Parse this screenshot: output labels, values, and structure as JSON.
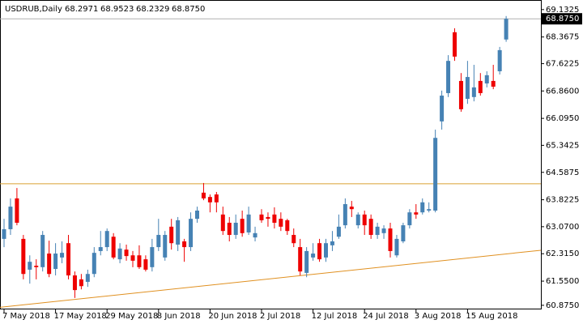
{
  "chart_data": {
    "type": "candlestick",
    "title": "USDRUB,Daily",
    "header_values": [
      "68.2971",
      "68.9523",
      "68.2329",
      "68.8750"
    ],
    "price_label": {
      "value": 68.875,
      "label": "68.8750"
    },
    "up_color": "#4682b4",
    "down_color": "#ee0000",
    "categories": [
      "7 May 2018",
      null,
      null,
      null,
      null,
      null,
      null,
      null,
      "17 May 2018",
      null,
      null,
      null,
      null,
      null,
      null,
      null,
      "29 May 2018",
      null,
      null,
      null,
      null,
      null,
      null,
      null,
      "8 Jun 2018",
      null,
      null,
      null,
      null,
      null,
      null,
      null,
      "20 Jun 2018",
      null,
      null,
      null,
      null,
      null,
      null,
      null,
      "2 Jul 2018",
      null,
      null,
      null,
      null,
      null,
      null,
      null,
      "12 Jul 2018",
      null,
      null,
      null,
      null,
      null,
      null,
      null,
      "24 Jul 2018",
      null,
      null,
      null,
      null,
      null,
      null,
      null,
      "3 Aug 2018",
      null,
      null,
      null,
      null,
      null,
      null,
      null,
      "15 Aug 2018",
      null,
      null,
      null,
      null,
      null,
      null
    ],
    "open": [
      62.73,
      63.0,
      63.86,
      62.73,
      61.87,
      61.98,
      61.94,
      62.32,
      61.89,
      62.21,
      62.61,
      61.71,
      61.6,
      61.53,
      61.75,
      62.39,
      62.5,
      62.79,
      62.16,
      62.43,
      62.27,
      62.27,
      62.16,
      61.94,
      62.5,
      62.21,
      63.07,
      62.57,
      62.66,
      62.5,
      63.29,
      64.02,
      63.9,
      63.97,
      63.41,
      63.18,
      62.84,
      63.29,
      62.91,
      62.77,
      63.41,
      63.34,
      63.41,
      63.29,
      63.25,
      62.84,
      62.5,
      61.78,
      62.21,
      62.61,
      62.21,
      62.55,
      62.79,
      63.11,
      63.63,
      63.11,
      63.41,
      63.29,
      62.84,
      62.89,
      63.02,
      62.27,
      62.66,
      63.11,
      63.47,
      63.47,
      63.52,
      63.52,
      66.01,
      66.8,
      68.5,
      67.14,
      66.64,
      66.69,
      67.14,
      67.07,
      67.14,
      67.41,
      68.2971
    ],
    "high": [
      63.29,
      63.86,
      64.15,
      62.84,
      62.27,
      62.16,
      62.95,
      62.68,
      62.61,
      62.66,
      62.84,
      61.82,
      61.75,
      61.87,
      62.5,
      62.95,
      63.02,
      62.89,
      62.61,
      62.57,
      62.39,
      62.55,
      62.27,
      62.73,
      63.29,
      62.95,
      63.29,
      63.34,
      62.73,
      63.47,
      63.63,
      64.29,
      63.97,
      64.04,
      63.63,
      63.34,
      63.41,
      63.52,
      63.63,
      63.07,
      63.56,
      63.47,
      63.61,
      63.47,
      63.29,
      63.02,
      62.73,
      62.5,
      62.61,
      62.73,
      62.73,
      62.95,
      63.41,
      63.86,
      63.79,
      63.47,
      63.52,
      63.41,
      63.18,
      63.11,
      63.18,
      62.84,
      63.18,
      63.56,
      63.7,
      63.86,
      63.75,
      65.78,
      66.87,
      67.86,
      68.61,
      67.36,
      67.7,
      67.59,
      67.36,
      67.41,
      67.59,
      68.09,
      68.9523
    ],
    "low": [
      62.5,
      62.84,
      63.11,
      61.6,
      61.48,
      61.6,
      61.82,
      61.66,
      61.71,
      62.05,
      61.6,
      61.08,
      61.32,
      61.39,
      61.66,
      62.27,
      62.39,
      62.16,
      62.05,
      62.12,
      61.94,
      61.89,
      61.82,
      61.82,
      62.39,
      62.12,
      62.43,
      62.39,
      62.09,
      62.39,
      63.18,
      63.81,
      63.47,
      63.47,
      62.84,
      62.66,
      62.73,
      62.79,
      62.84,
      62.66,
      63.18,
      63.07,
      63.02,
      62.95,
      62.84,
      62.5,
      61.71,
      61.66,
      62.12,
      62.09,
      62.09,
      62.39,
      62.73,
      63.02,
      63.34,
      63.02,
      62.84,
      62.73,
      62.73,
      62.73,
      62.21,
      62.21,
      62.61,
      63.02,
      63.29,
      63.41,
      63.47,
      63.47,
      65.78,
      66.69,
      67.7,
      66.28,
      66.5,
      66.57,
      66.73,
      66.96,
      66.91,
      67.32,
      68.2329
    ],
    "close": [
      63.0,
      63.63,
      63.18,
      61.75,
      62.09,
      61.94,
      62.84,
      61.75,
      62.32,
      62.34,
      61.71,
      61.3,
      61.41,
      61.75,
      62.34,
      62.5,
      62.95,
      62.21,
      62.46,
      62.25,
      62.12,
      61.94,
      61.87,
      62.5,
      62.84,
      62.84,
      62.61,
      63.25,
      62.5,
      63.29,
      63.52,
      63.86,
      63.75,
      63.75,
      62.95,
      62.84,
      63.18,
      62.89,
      63.41,
      62.89,
      63.25,
      63.29,
      63.18,
      63.07,
      62.95,
      62.61,
      61.82,
      62.39,
      62.32,
      62.16,
      62.61,
      62.66,
      63.07,
      63.7,
      63.56,
      63.41,
      63.11,
      62.84,
      63.07,
      63.02,
      62.39,
      62.73,
      63.11,
      63.47,
      63.41,
      63.75,
      63.56,
      65.55,
      66.73,
      67.7,
      67.82,
      66.35,
      67.25,
      66.96,
      66.8,
      67.3,
      66.98,
      68.0,
      68.875
    ],
    "ylim": [
      60.76,
      69.4
    ],
    "yticks": [
      {
        "value": 69.1325,
        "label": "69.1325"
      },
      {
        "value": 68.3675,
        "label": "68.3675"
      },
      {
        "value": 67.6225,
        "label": "67.6225"
      },
      {
        "value": 66.86,
        "label": "66.8600"
      },
      {
        "value": 66.095,
        "label": "66.0950"
      },
      {
        "value": 65.3425,
        "label": "65.3425"
      },
      {
        "value": 64.5875,
        "label": "64.5875"
      },
      {
        "value": 63.8225,
        "label": "63.8225"
      },
      {
        "value": 63.07,
        "label": "63.0700"
      },
      {
        "value": 62.315,
        "label": "62.3150"
      },
      {
        "value": 61.55,
        "label": "61.5500"
      },
      {
        "value": 60.875,
        "label": "60.8750"
      }
    ],
    "level": {
      "value": 64.27,
      "color": "#d9a030"
    },
    "trendline": {
      "x": [
        0,
        78
      ],
      "y": [
        60.83,
        62.31
      ],
      "color": "#e09020"
    }
  }
}
